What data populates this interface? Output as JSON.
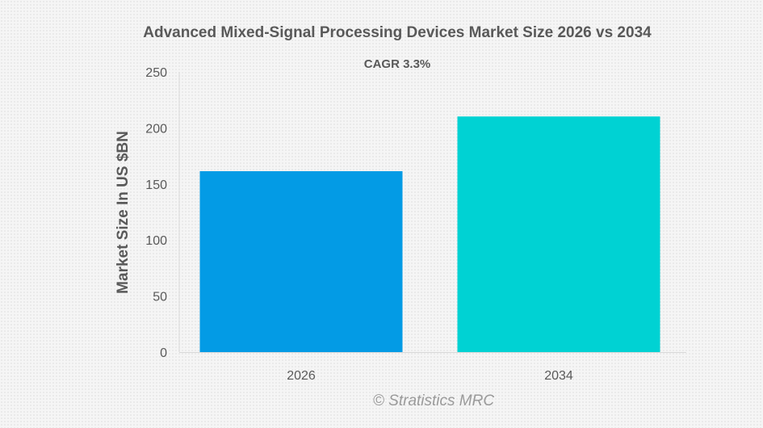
{
  "chart_data": {
    "type": "bar",
    "title": "Advanced Mixed-Signal Processing Devices Market Size 2026 vs 2034",
    "subtitle": "CAGR 3.3%",
    "xlabel": "",
    "ylabel": "Market Size In US $BN",
    "categories": [
      "2026",
      "2034"
    ],
    "values": [
      161.4,
      210.2
    ],
    "colors": [
      "#039be5",
      "#00d2d3"
    ],
    "ylim": [
      0,
      250
    ],
    "yticks": [
      0,
      50,
      100,
      150,
      200,
      250
    ],
    "grid": false,
    "legend": "none",
    "footer": "© Stratistics MRC"
  }
}
